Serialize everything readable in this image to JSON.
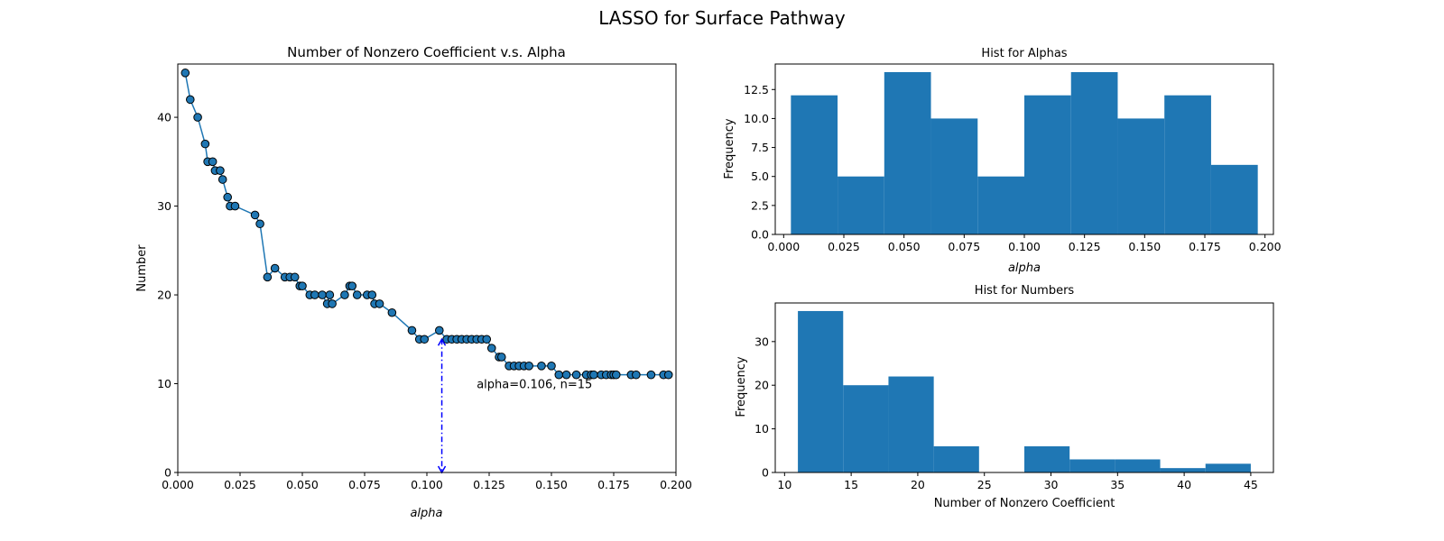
{
  "figure": {
    "title": "LASSO for Surface Pathway"
  },
  "chart_data": [
    {
      "type": "line",
      "title": "Number of Nonzero Coefficient v.s. Alpha",
      "xlabel": "alpha",
      "ylabel": "Number",
      "xlim": [
        0.0,
        0.2
      ],
      "ylim": [
        0,
        46
      ],
      "xticks": [
        "0.000",
        "0.025",
        "0.050",
        "0.075",
        "0.100",
        "0.125",
        "0.150",
        "0.175",
        "0.200"
      ],
      "yticks": [
        "0",
        "10",
        "20",
        "30",
        "40"
      ],
      "line_color": "#1f77b4",
      "marker_color": "#1f77b4",
      "annotation": {
        "text": "alpha=0.106, n=15",
        "alpha": 0.106,
        "n": 15,
        "text_x": 0.12,
        "text_y": 10,
        "color": "#0000ff"
      },
      "series": [
        {
          "x": [
            0.003,
            0.005,
            0.008,
            0.011,
            0.012,
            0.014,
            0.015,
            0.017,
            0.018,
            0.02,
            0.021,
            0.023,
            0.031,
            0.033,
            0.036,
            0.039,
            0.043,
            0.045,
            0.047,
            0.049,
            0.05,
            0.053,
            0.055,
            0.058,
            0.06,
            0.061,
            0.062,
            0.067,
            0.069,
            0.07,
            0.072,
            0.076,
            0.078,
            0.079,
            0.081,
            0.086,
            0.094,
            0.097,
            0.099,
            0.105,
            0.108,
            0.11,
            0.112,
            0.114,
            0.116,
            0.118,
            0.12,
            0.122,
            0.124,
            0.126,
            0.129,
            0.13,
            0.133,
            0.135,
            0.137,
            0.139,
            0.141,
            0.146,
            0.15,
            0.153,
            0.156,
            0.16,
            0.164,
            0.166,
            0.167,
            0.17,
            0.172,
            0.174,
            0.175,
            0.176,
            0.182,
            0.184,
            0.19,
            0.195,
            0.197
          ],
          "y": [
            45,
            42,
            40,
            37,
            35,
            35,
            34,
            34,
            33,
            31,
            30,
            30,
            29,
            28,
            22,
            23,
            22,
            22,
            22,
            21,
            21,
            20,
            20,
            20,
            19,
            20,
            19,
            20,
            21,
            21,
            20,
            20,
            20,
            19,
            19,
            18,
            16,
            15,
            15,
            16,
            15,
            15,
            15,
            15,
            15,
            15,
            15,
            15,
            15,
            14,
            13,
            13,
            12,
            12,
            12,
            12,
            12,
            12,
            12,
            11,
            11,
            11,
            11,
            11,
            11,
            11,
            11,
            11,
            11,
            11,
            11,
            11,
            11,
            11,
            11
          ]
        }
      ]
    },
    {
      "type": "bar",
      "title": "Hist for Alphas",
      "xlabel": "alpha",
      "ylabel": "Frequency",
      "xlim": [
        -0.0035,
        0.2035
      ],
      "ylim": [
        0,
        14.7
      ],
      "xticks": [
        "0.000",
        "0.025",
        "0.050",
        "0.075",
        "0.100",
        "0.125",
        "0.150",
        "0.175",
        "0.200"
      ],
      "yticks": [
        "0.0",
        "2.5",
        "5.0",
        "7.5",
        "10.0",
        "12.5"
      ],
      "bar_color": "#1f77b4",
      "bin_edges": [
        0.003,
        0.0224,
        0.0418,
        0.0612,
        0.0806,
        0.1,
        0.1194,
        0.1388,
        0.1582,
        0.1776,
        0.197
      ],
      "values": [
        12,
        5,
        14,
        10,
        5,
        12,
        14,
        10,
        12,
        6
      ]
    },
    {
      "type": "bar",
      "title": "Hist for Numbers",
      "xlabel": "Number of Nonzero Coefficient",
      "ylabel": "Frequency",
      "xlim": [
        9.3,
        46.7
      ],
      "ylim": [
        0,
        38.85
      ],
      "xticks": [
        "10",
        "15",
        "20",
        "25",
        "30",
        "35",
        "40",
        "45"
      ],
      "yticks": [
        "0",
        "10",
        "20",
        "30"
      ],
      "bar_color": "#1f77b4",
      "bin_edges": [
        11,
        14.4,
        17.8,
        21.2,
        24.6,
        28,
        31.4,
        34.8,
        38.2,
        41.6,
        45
      ],
      "values": [
        37,
        20,
        22,
        6,
        0,
        6,
        3,
        3,
        1,
        2
      ]
    }
  ]
}
